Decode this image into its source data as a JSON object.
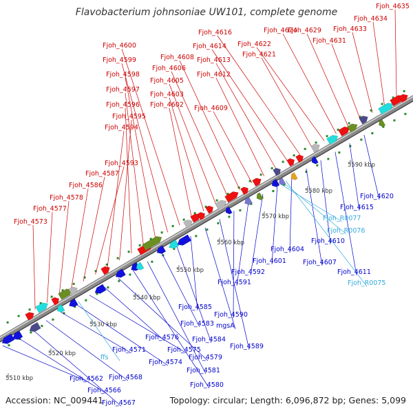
{
  "title": "Flavobacterium johnsoniae UW101, complete genome",
  "footer": {
    "accession": "Accession: NC_009441",
    "summary": "Topology: circular; Length: 6,096,872 bp; Genes: 5,099"
  },
  "colors": {
    "forward_label": "#cc0000",
    "reverse_label": "#0000cc",
    "rna_label": "#33aadd",
    "backbone": "#8a8a8a"
  },
  "scale_ticks": [
    "5510 kbp",
    "5520 kbp",
    "5530 kbp",
    "5540 kbp",
    "5550 kbp",
    "5560 kbp",
    "5570 kbp",
    "5580 kbp",
    "5590 kbp"
  ],
  "labels_forward": [
    "Fjoh_4573",
    "Fjoh_4577",
    "Fjoh_4578",
    "Fjoh_4586",
    "Fjoh_4587",
    "Fjoh_4593",
    "Fjoh_4594",
    "Fjoh_4595",
    "Fjoh_4596",
    "Fjoh_4597",
    "Fjoh_4598",
    "Fjoh_4599",
    "Fjoh_4600",
    "Fjoh_4602",
    "Fjoh_4603",
    "Fjoh_4605",
    "Fjoh_4606",
    "Fjoh_4608",
    "Fjoh_4609",
    "Fjoh_4612",
    "Fjoh_4613",
    "Fjoh_4614",
    "Fjoh_4616",
    "Fjoh_4621",
    "Fjoh_4622",
    "Fjoh_4624",
    "Fjoh_4629",
    "Fjoh_4631",
    "Fjoh_4633",
    "Fjoh_4634",
    "Fjoh_4635"
  ],
  "labels_reverse": [
    "Fjoh_4562",
    "Fjoh_4566",
    "Fjoh_4567",
    "Fjoh_4568",
    "Fjoh_4571",
    "Fjoh_4574",
    "Fjoh_4575",
    "Fjoh_4576",
    "Fjoh_4579",
    "Fjoh_4580",
    "Fjoh_4581",
    "Fjoh_4583",
    "Fjoh_4584",
    "Fjoh_4585",
    "mgsA",
    "Fjoh_4589",
    "Fjoh_4590",
    "Fjoh_4591",
    "Fjoh_4592",
    "Fjoh_4601",
    "Fjoh_4604",
    "Fjoh_4607",
    "Fjoh_4610",
    "Fjoh_4611",
    "Fjoh_4615",
    "Fjoh_4620"
  ],
  "labels_rna": [
    "ffs",
    "Fjoh_R0075",
    "Fjoh_R0076",
    "Fjoh_R0077"
  ]
}
